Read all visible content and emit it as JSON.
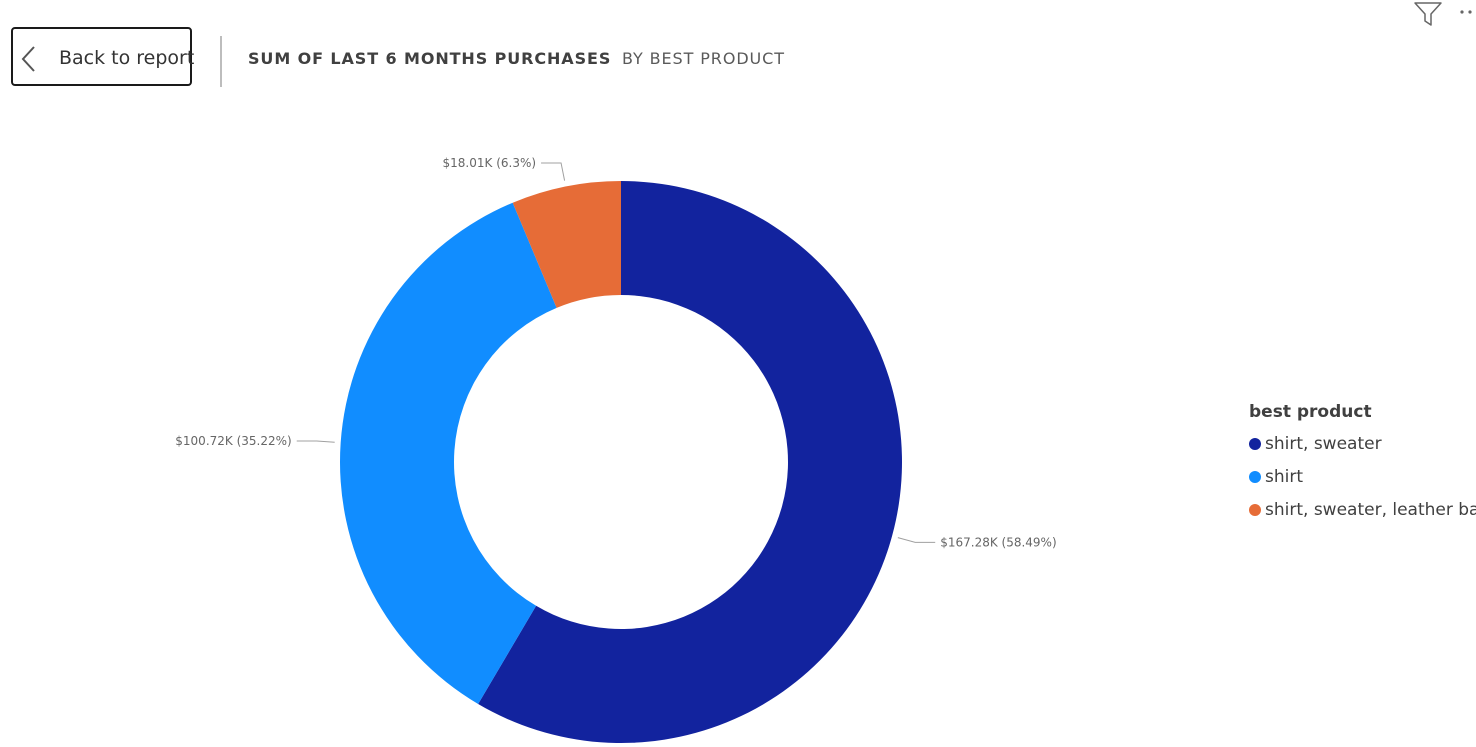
{
  "header": {
    "back_label": "Back to report",
    "title": "SUM OF LAST 6 MONTHS PURCHASES",
    "subtitle": "BY BEST PRODUCT"
  },
  "toolbar": {
    "filter_icon": "filter-icon",
    "more_icon": "more-options-icon"
  },
  "chart_data": {
    "type": "pie",
    "variant": "donut",
    "title": "SUM OF LAST 6 MONTHS PURCHASES",
    "subtitle": "BY BEST PRODUCT",
    "legend_title": "best product",
    "legend_position": "right",
    "categories": [
      "shirt, sweater",
      "shirt",
      "shirt, sweater, leather bag"
    ],
    "values": [
      167.28,
      100.72,
      18.01
    ],
    "units": "$K",
    "percentages": [
      58.49,
      35.22,
      6.3
    ],
    "data_labels": [
      "$167.28K (58.49%)",
      "$100.72K (35.22%)",
      "$18.01K (6.3%)"
    ],
    "colors": [
      "#12239E",
      "#118DFF",
      "#E66C37"
    ]
  }
}
